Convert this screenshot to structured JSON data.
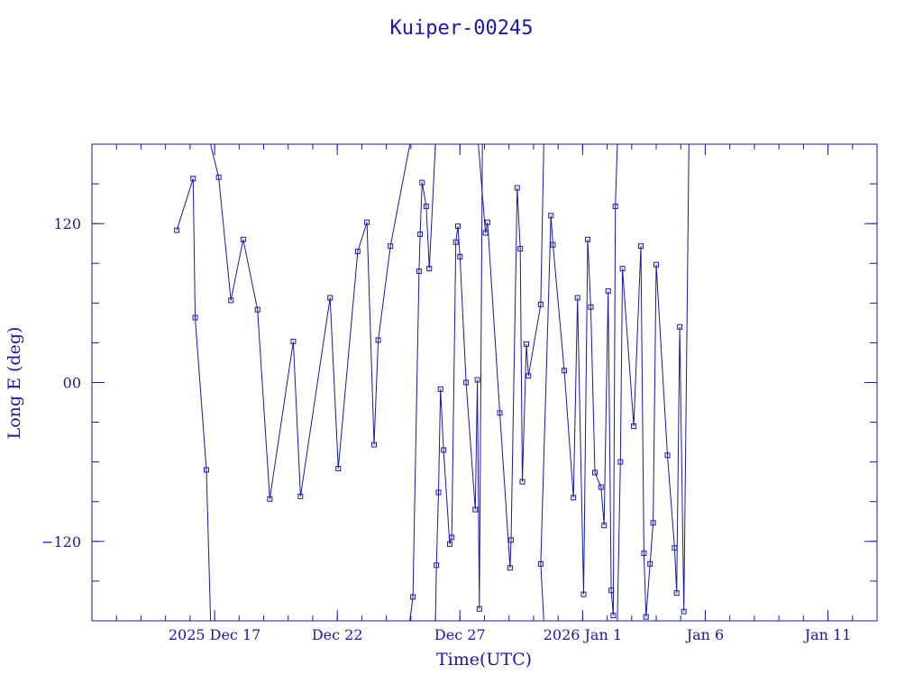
{
  "chart_data": {
    "type": "line",
    "title": "Kuiper-00245",
    "xlabel": "Time(UTC)",
    "ylabel": "Long E (deg)",
    "x_range": [
      "2025-12-12T00:00",
      "2026-01-13T00:00"
    ],
    "ylim": [
      -180,
      180
    ],
    "y_wrap": true,
    "x_tick_labels": [
      {
        "date": "2025-12-17T00:00",
        "label": "2025 Dec 17"
      },
      {
        "date": "2025-12-22T00:00",
        "label": "Dec 22"
      },
      {
        "date": "2025-12-27T00:00",
        "label": "Dec 27"
      },
      {
        "date": "2026-01-01T00:00",
        "label": "2026 Jan  1"
      },
      {
        "date": "2026-01-06T00:00",
        "label": "Jan  6"
      },
      {
        "date": "2026-01-11T00:00",
        "label": "Jan 11"
      }
    ],
    "y_tick_labels": [
      {
        "value": 120,
        "label": "120"
      },
      {
        "value": 0,
        "label": "00"
      },
      {
        "value": -120,
        "label": "−120"
      }
    ],
    "grid": false,
    "series_color": "#1a1a9c",
    "series": [
      {
        "name": "",
        "points": [
          [
            "2025-12-15T11:00",
            115
          ],
          [
            "2025-12-16T03:00",
            154
          ],
          [
            "2025-12-16T05:00",
            49
          ],
          [
            "2025-12-16T16:00",
            -66
          ],
          [
            "2025-12-16T20:00",
            -180
          ],
          [
            "2025-12-16T20:00",
            180
          ],
          [
            "2025-12-17T04:00",
            155
          ],
          [
            "2025-12-17T16:00",
            62
          ],
          [
            "2025-12-18T04:00",
            108
          ],
          [
            "2025-12-18T18:00",
            55
          ],
          [
            "2025-12-19T06:00",
            -88
          ],
          [
            "2025-12-20T05:00",
            31
          ],
          [
            "2025-12-20T12:00",
            -86
          ],
          [
            "2025-12-21T17:00",
            64
          ],
          [
            "2025-12-22T01:00",
            -65
          ],
          [
            "2025-12-22T20:00",
            99
          ],
          [
            "2025-12-23T05:00",
            121
          ],
          [
            "2025-12-23T12:00",
            -47
          ],
          [
            "2025-12-23T16:00",
            32
          ],
          [
            "2025-12-24T04:00",
            103
          ],
          [
            "2025-12-24T23:00",
            180
          ],
          [
            "2025-12-24T23:00",
            -180
          ],
          [
            "2025-12-25T02:00",
            -162
          ],
          [
            "2025-12-25T08:00",
            84
          ],
          [
            "2025-12-25T09:00",
            112
          ],
          [
            "2025-12-25T11:00",
            151
          ],
          [
            "2025-12-25T15:00",
            133
          ],
          [
            "2025-12-25T18:00",
            86
          ],
          [
            "2025-12-26T00:00",
            180
          ],
          [
            "2025-12-26T00:00",
            -180
          ],
          [
            "2025-12-26T01:00",
            -138
          ],
          [
            "2025-12-26T03:00",
            -83
          ],
          [
            "2025-12-26T05:00",
            -5
          ],
          [
            "2025-12-26T08:00",
            -51
          ],
          [
            "2025-12-26T14:00",
            -122
          ],
          [
            "2025-12-26T16:00",
            -117
          ],
          [
            "2025-12-26T20:00",
            106
          ],
          [
            "2025-12-26T22:00",
            118
          ],
          [
            "2025-12-27T00:00",
            95
          ],
          [
            "2025-12-27T06:00",
            0
          ],
          [
            "2025-12-27T15:00",
            -96
          ],
          [
            "2025-12-27T17:00",
            2
          ],
          [
            "2025-12-27T19:00",
            -171
          ],
          [
            "2025-12-27T22:00",
            180
          ],
          [
            "2025-12-27T22:00",
            -180
          ]
        ]
      },
      {
        "name": "",
        "points": [
          [
            "2025-12-27T18:00",
            180
          ],
          [
            "2025-12-28T01:00",
            113
          ],
          [
            "2025-12-28T03:00",
            121
          ],
          [
            "2025-12-28T15:00",
            -23
          ],
          [
            "2025-12-29T01:00",
            -140
          ],
          [
            "2025-12-29T02:00",
            -119
          ],
          [
            "2025-12-29T08:00",
            147
          ],
          [
            "2025-12-29T11:00",
            101
          ],
          [
            "2025-12-29T13:00",
            -75
          ],
          [
            "2025-12-29T17:00",
            29
          ],
          [
            "2025-12-29T19:00",
            5
          ],
          [
            "2025-12-30T07:00",
            59
          ],
          [
            "2025-12-30T10:00",
            180
          ],
          [
            "2025-12-30T10:00",
            -180
          ],
          [
            "2025-12-30T07:00",
            -137
          ],
          [
            "2025-12-30T17:00",
            126
          ],
          [
            "2025-12-30T19:00",
            104
          ],
          [
            "2025-12-31T06:00",
            9
          ],
          [
            "2025-12-31T15:00",
            -87
          ],
          [
            "2025-12-31T19:00",
            64
          ],
          [
            "2026-01-01T01:00",
            -160
          ],
          [
            "2026-01-01T05:00",
            108
          ],
          [
            "2026-01-01T08:00",
            57
          ],
          [
            "2026-01-01T12:00",
            -68
          ],
          [
            "2026-01-01T18:00",
            -79
          ],
          [
            "2026-01-01T21:00",
            -108
          ],
          [
            "2026-01-02T01:00",
            69
          ],
          [
            "2026-01-02T04:00",
            -157
          ],
          [
            "2026-01-02T06:00",
            -176
          ],
          [
            "2026-01-02T08:00",
            133
          ],
          [
            "2026-01-02T10:00",
            180
          ],
          [
            "2026-01-02T10:00",
            -180
          ],
          [
            "2026-01-02T13:00",
            -60
          ],
          [
            "2026-01-02T15:00",
            86
          ],
          [
            "2026-01-03T02:00",
            -33
          ],
          [
            "2026-01-03T09:00",
            103
          ],
          [
            "2026-01-03T12:00",
            -129
          ],
          [
            "2026-01-03T14:00",
            -177
          ],
          [
            "2026-01-03T18:00",
            -137
          ],
          [
            "2026-01-03T21:00",
            -106
          ],
          [
            "2026-01-04T00:00",
            89
          ],
          [
            "2026-01-04T11:00",
            -55
          ],
          [
            "2026-01-04T18:00",
            -125
          ],
          [
            "2026-01-04T20:00",
            -159
          ],
          [
            "2026-01-04T23:00",
            42
          ],
          [
            "2026-01-05T03:00",
            -173
          ],
          [
            "2026-01-05T08:00",
            180
          ]
        ]
      }
    ]
  }
}
